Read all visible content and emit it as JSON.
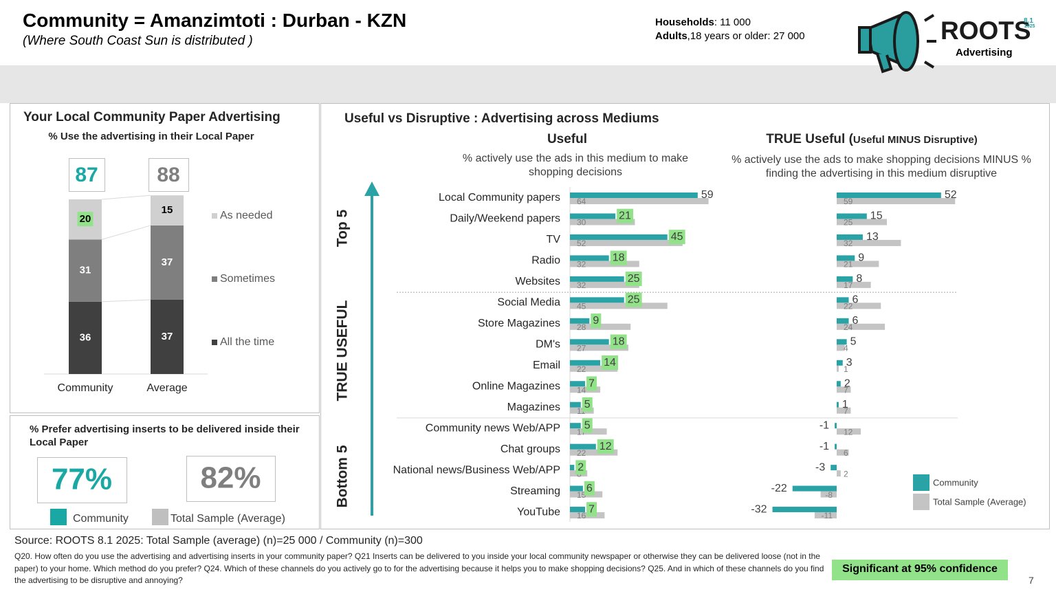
{
  "header": {
    "title": "Community = Amanzimtoti : Durban - KZN",
    "subtitle": "(Where South Coast Sun is distributed )",
    "households_label": "Households",
    "households_value": ": 11 000",
    "adults_label": "Adults",
    "adults_value": ",18 years or older: 27 000",
    "logo_name": "ROOTS",
    "logo_version": "8.1",
    "logo_year": "2025",
    "logo_tagline": "Advertising"
  },
  "chart_data": [
    {
      "type": "stacked_bar",
      "title": "Your Local Community Paper Advertising",
      "subtitle": "% Use the advertising in their Local Paper",
      "categories": [
        "Community",
        "Average"
      ],
      "totals": [
        87,
        88
      ],
      "series": [
        {
          "name": "All the time",
          "color": "#404040",
          "values": [
            36,
            37
          ],
          "significant": [
            false,
            false
          ]
        },
        {
          "name": "Sometimes",
          "color": "#7f7f7f",
          "values": [
            31,
            37
          ],
          "significant": [
            false,
            false
          ]
        },
        {
          "name": "As needed",
          "color": "#d0d0d0",
          "values": [
            20,
            15
          ],
          "significant": [
            true,
            false
          ]
        }
      ]
    },
    {
      "type": "kpi",
      "title": "% Prefer advertising inserts to be delivered inside their Local Paper",
      "categories": [
        "Community",
        "Total Sample (Average)"
      ],
      "values": [
        77,
        82
      ],
      "value_labels": [
        "77%",
        "82%"
      ],
      "colors": [
        "#1aa8a4",
        "#bfbfbf"
      ]
    },
    {
      "type": "hbar",
      "title": "Useful vs Disruptive : Advertising across Mediums",
      "subtitle": "Useful",
      "note": "% actively use the ads in this medium to make shopping decisions",
      "section_labels": [
        "Top 5",
        "TRUE USEFUL",
        "Bottom 5"
      ],
      "categories": [
        "Local Community papers",
        "Daily/Weekend papers",
        "TV",
        "Radio",
        "Websites",
        "Social Media",
        "Store Magazines",
        "DM's",
        "Email",
        "Online Magazines",
        "Magazines",
        "Community news Web/APP",
        "Chat groups",
        "National news/Business Web/APP",
        "Streaming",
        "YouTube"
      ],
      "series": [
        {
          "color": "#2aa3a6",
          "values": [
            59,
            21,
            45,
            18,
            25,
            25,
            9,
            18,
            14,
            7,
            5,
            5,
            12,
            2,
            6,
            7
          ],
          "significant": [
            false,
            true,
            true,
            true,
            true,
            true,
            true,
            true,
            true,
            true,
            true,
            true,
            true,
            true,
            true,
            true
          ]
        },
        {
          "color": "#c4c4c4",
          "values": [
            64,
            30,
            52,
            32,
            32,
            45,
            28,
            27,
            22,
            14,
            11,
            17,
            22,
            8,
            15,
            16
          ]
        }
      ]
    },
    {
      "type": "hbar",
      "subtitle": "TRUE Useful (",
      "subtitle_small": "Useful MINUS Disruptive)",
      "note": "% actively use the ads to make shopping decisions MINUS % finding the advertising in this medium disruptive",
      "legend": "bottom-right",
      "series": [
        {
          "name": "Community",
          "color": "#2aa3a6",
          "values": [
            52,
            15,
            13,
            9,
            8,
            6,
            6,
            5,
            3,
            2,
            1,
            -1,
            -1,
            -3,
            -22,
            -32
          ]
        },
        {
          "name": "Total Sample (Average)",
          "color": "#c4c4c4",
          "values": [
            59,
            25,
            32,
            21,
            17,
            22,
            24,
            4,
            1,
            7,
            7,
            12,
            6,
            2,
            -8,
            -11
          ]
        }
      ]
    }
  ],
  "footer": {
    "source": "Source: ROOTS 8.1 2025:  Total Sample (average)  (n)=25 000 / Community (n)=300",
    "questions": "Q20. How often do you use the advertising and advertising inserts in your community paper? Q21 Inserts can be delivered to you inside your local community newspaper or otherwise they can be delivered loose (not in the paper) to your home.  Which method do you prefer? Q24. Which of these channels do you actively go to for the advertising because it helps you to make shopping decisions? Q25. And in which of these channels do you find the advertising to be disruptive and annoying?",
    "significance": "Significant at 95% confidence",
    "page": "7"
  }
}
